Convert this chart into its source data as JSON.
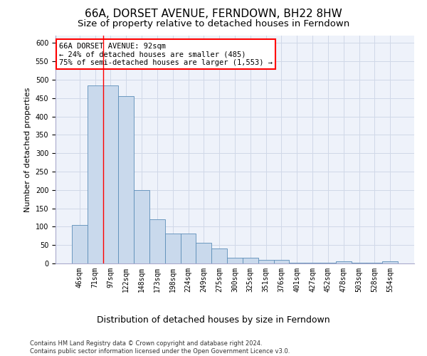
{
  "title": "66A, DORSET AVENUE, FERNDOWN, BH22 8HW",
  "subtitle": "Size of property relative to detached houses in Ferndown",
  "xlabel": "Distribution of detached houses by size in Ferndown",
  "ylabel": "Number of detached properties",
  "categories": [
    "46sqm",
    "71sqm",
    "97sqm",
    "122sqm",
    "148sqm",
    "173sqm",
    "198sqm",
    "224sqm",
    "249sqm",
    "275sqm",
    "300sqm",
    "325sqm",
    "351sqm",
    "376sqm",
    "401sqm",
    "427sqm",
    "452sqm",
    "478sqm",
    "503sqm",
    "528sqm",
    "554sqm"
  ],
  "values": [
    105,
    485,
    485,
    455,
    200,
    120,
    82,
    82,
    57,
    40,
    15,
    15,
    10,
    10,
    1,
    1,
    1,
    6,
    1,
    1,
    6
  ],
  "bar_color": "#c9d9ec",
  "bar_edge_color": "#5b8db8",
  "red_line_x": 1.5,
  "annotation_line1": "66A DORSET AVENUE: 92sqm",
  "annotation_line2": "← 24% of detached houses are smaller (485)",
  "annotation_line3": "75% of semi-detached houses are larger (1,553) →",
  "annotation_box_color": "white",
  "annotation_box_edge_color": "red",
  "red_line_color": "red",
  "grid_color": "#d0d8e8",
  "bg_color": "#eef2fa",
  "footer": "Contains HM Land Registry data © Crown copyright and database right 2024.\nContains public sector information licensed under the Open Government Licence v3.0.",
  "ylim": [
    0,
    620
  ],
  "title_fontsize": 11,
  "subtitle_fontsize": 9.5,
  "xlabel_fontsize": 9,
  "ylabel_fontsize": 8,
  "tick_fontsize": 7,
  "footer_fontsize": 6,
  "annotation_fontsize": 7.5
}
